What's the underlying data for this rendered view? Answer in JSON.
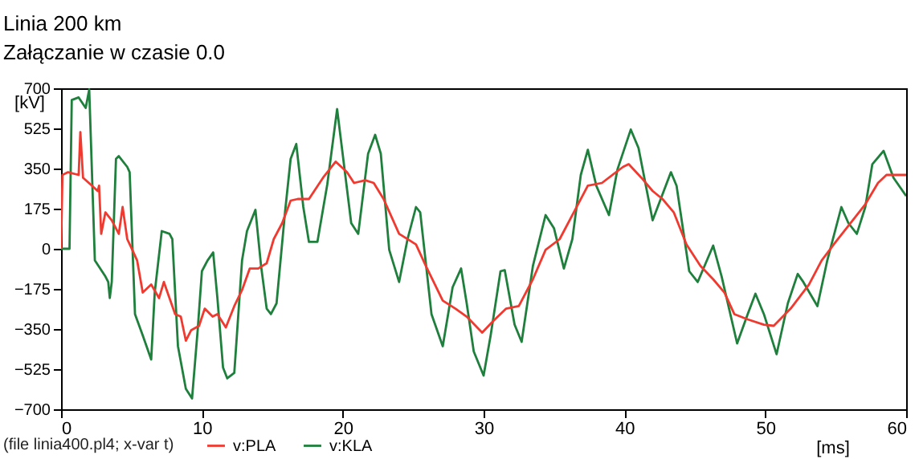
{
  "chart_data": {
    "type": "line",
    "title": "Linia 200 km",
    "subtitle": "Załączanie w czasie 0.0",
    "xlabel": "[ms]",
    "ylabel": "[kV]",
    "annotations": [
      "(file linia400.pl4; x-var t)"
    ],
    "xlim": [
      0,
      60
    ],
    "xticks": [
      0,
      10,
      20,
      30,
      40,
      50,
      60
    ],
    "ylim": [
      -700,
      700
    ],
    "yticks": [
      -700,
      -525,
      -350,
      -175,
      0,
      175,
      350,
      525,
      700
    ],
    "grid": false,
    "legend": "bottom left",
    "marker": "none",
    "line_style": "solid",
    "series": [
      {
        "name": "v:PLA",
        "color": "#f03a30",
        "x": [
          0,
          0.1,
          0.5,
          1.25,
          1.37,
          1.56,
          2.2,
          2.6,
          2.7,
          2.85,
          3.15,
          3.6,
          4.1,
          4.37,
          4.7,
          5.06,
          5.4,
          5.8,
          6.4,
          6.96,
          7.3,
          8.1,
          8.5,
          8.86,
          9.24,
          9.8,
          10.2,
          10.76,
          11.1,
          11.7,
          12.3,
          12.85,
          13.4,
          14,
          14.6,
          15.1,
          15.7,
          16.3,
          16.8,
          17.6,
          18.6,
          19.5,
          20.3,
          20.8,
          21.6,
          22.2,
          22.9,
          24,
          25.2,
          25.9,
          27.1,
          28,
          28.8,
          29.9,
          30.6,
          31.6,
          32.5,
          33.5,
          34.4,
          35.4,
          36.5,
          37.4,
          38.4,
          39.9,
          40.3,
          41.2,
          42,
          42.7,
          43.5,
          44.4,
          45.4,
          46.3,
          47.1,
          47.8,
          48.75,
          49.9,
          50.6,
          51.8,
          53.1,
          54,
          55,
          55.9,
          57.1,
          58,
          58.6,
          60
        ],
        "values": [
          0,
          322,
          334,
          322,
          509,
          310,
          275,
          252,
          275,
          65,
          159,
          124,
          65,
          182,
          42,
          -5,
          -51,
          -191,
          -156,
          -215,
          -145,
          -285,
          -296,
          -401,
          -355,
          -336,
          -261,
          -296,
          -285,
          -343,
          -250,
          -180,
          -86,
          -86,
          -63,
          42,
          112,
          210,
          217,
          217,
          310,
          380,
          334,
          287,
          299,
          287,
          217,
          65,
          19,
          -75,
          -226,
          -261,
          -296,
          -366,
          -320,
          -261,
          -250,
          -133,
          -5,
          42,
          170,
          275,
          287,
          357,
          369,
          310,
          252,
          217,
          159,
          19,
          -75,
          -133,
          -191,
          -285,
          -308,
          -331,
          -336,
          -261,
          -156,
          -51,
          30,
          100,
          194,
          287,
          322,
          322
        ]
      },
      {
        "name": "v:KLA",
        "color": "#1f7f3c",
        "x": [
          0,
          0.6,
          0.76,
          1.25,
          1.75,
          2,
          2.4,
          3.15,
          3.35,
          3.46,
          3.6,
          3.9,
          4.1,
          4.7,
          4.87,
          5.25,
          5.8,
          6.4,
          6.65,
          7.15,
          7.7,
          7.9,
          8.3,
          8.86,
          9.3,
          9.7,
          10,
          10.4,
          10.8,
          11.1,
          11.5,
          11.8,
          12.3,
          12.85,
          13.2,
          13.8,
          14.2,
          14.6,
          14.9,
          15.3,
          15.9,
          16.3,
          16.7,
          17.2,
          17.6,
          18.2,
          18.9,
          19.6,
          20.6,
          21.1,
          21.8,
          22.3,
          22.7,
          23.3,
          24,
          24.6,
          25.2,
          25.5,
          26.3,
          27.1,
          27.8,
          28.4,
          28.8,
          29.3,
          30,
          30.5,
          31.2,
          31.5,
          32.2,
          32.7,
          33.5,
          34.4,
          35,
          35.7,
          36.3,
          36.9,
          37.4,
          38,
          38.9,
          39.5,
          40.45,
          41,
          42,
          42.5,
          43.3,
          43.7,
          44.6,
          45.2,
          46.3,
          46.9,
          48,
          48.75,
          49.3,
          49.9,
          50.8,
          51.6,
          52.3,
          52.7,
          53.7,
          54.4,
          55.4,
          55.9,
          56.5,
          57.1,
          57.6,
          58.4,
          59.1,
          60
        ],
        "values": [
          0,
          0,
          649,
          660,
          614,
          695,
          -51,
          -121,
          -145,
          -215,
          -145,
          392,
          404,
          357,
          334,
          -285,
          -378,
          -483,
          -191,
          77,
          65,
          42,
          -425,
          -611,
          -653,
          -355,
          -98,
          -51,
          -16,
          -215,
          -518,
          -565,
          -541,
          -51,
          77,
          170,
          -75,
          -261,
          -285,
          -238,
          159,
          392,
          457,
          182,
          30,
          30,
          280,
          609,
          112,
          65,
          415,
          497,
          415,
          -5,
          -145,
          42,
          182,
          159,
          -285,
          -425,
          -168,
          -86,
          -238,
          -448,
          -553,
          -378,
          -98,
          -93,
          -331,
          -406,
          -75,
          147,
          89,
          -86,
          42,
          322,
          432,
          275,
          147,
          345,
          520,
          439,
          124,
          205,
          334,
          275,
          -98,
          -145,
          14,
          -121,
          -413,
          -285,
          -196,
          -285,
          -460,
          -238,
          -110,
          -145,
          -250,
          -51,
          182,
          112,
          65,
          182,
          369,
          427,
          310,
          230
        ]
      }
    ]
  }
}
